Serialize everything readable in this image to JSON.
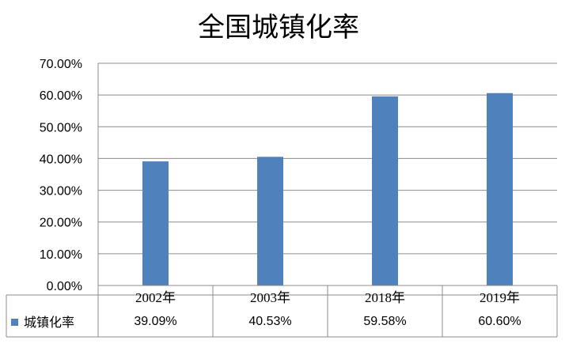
{
  "chart_data": {
    "type": "bar",
    "title": "全国城镇化率",
    "categories": [
      "2002年",
      "2003年",
      "2018年",
      "2019年"
    ],
    "series": [
      {
        "name": "城镇化率",
        "values": [
          39.09,
          40.53,
          59.58,
          60.6
        ],
        "color": "#4f81bd"
      }
    ],
    "data_labels": [
      "39.09%",
      "40.53%",
      "59.58%",
      "60.60%"
    ],
    "y_ticks": [
      "0.00%",
      "10.00%",
      "20.00%",
      "30.00%",
      "40.00%",
      "50.00%",
      "60.00%",
      "70.00%"
    ],
    "ylim": [
      0,
      70
    ],
    "grid": true,
    "legend": "data-table-left",
    "xlabel": "",
    "ylabel": ""
  }
}
